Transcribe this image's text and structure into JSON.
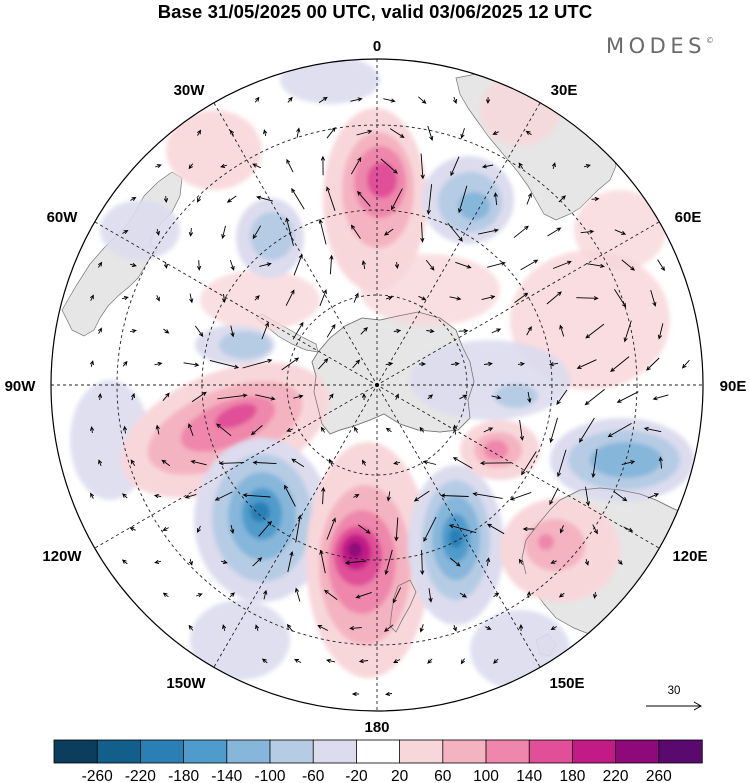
{
  "title": "Base 31/05/2025 00 UTC, valid 03/06/2025 12 UTC",
  "brand": {
    "name": "MODES",
    "mark": "©"
  },
  "longitude_labels": [
    "0",
    "30E",
    "60E",
    "90E",
    "120E",
    "150E",
    "180",
    "150W",
    "120W",
    "90W",
    "60W",
    "30W"
  ],
  "reference_vector": {
    "value": "30"
  },
  "colorbar": {
    "ticks": [
      "-260",
      "-220",
      "-180",
      "-140",
      "-100",
      "-60",
      "-20",
      "20",
      "60",
      "100",
      "140",
      "180",
      "220",
      "260"
    ],
    "colors": [
      "#0b3d5c",
      "#135f8c",
      "#2a7fb5",
      "#4f9bcb",
      "#86b6da",
      "#b6cce4",
      "#dcdcee",
      "#ffffff",
      "#f8d7da",
      "#f4b3c0",
      "#ee87ab",
      "#e04f98",
      "#c21a86",
      "#8e0a7a",
      "#5a0a6e"
    ]
  },
  "anomaly_regions": [
    {
      "sign": "positive",
      "peak_level": "220-260",
      "area": "near 165E-170W, 40-50S"
    },
    {
      "sign": "positive",
      "peak_level": "140-180",
      "area": "near 0-10E, 45S"
    },
    {
      "sign": "positive",
      "peak_level": "140-180",
      "area": "near 80W-100W, 50S"
    },
    {
      "sign": "negative",
      "peak_level": "-180 to -220",
      "area": "near 125W, 45S"
    },
    {
      "sign": "negative",
      "peak_level": "-180 to -220",
      "area": "near 150E-160E, 45S"
    },
    {
      "sign": "negative",
      "peak_level": "-100 to -140",
      "area": "near 105E, 45S"
    },
    {
      "sign": "negative",
      "peak_level": "-100 to -140",
      "area": "near 30E, 45S"
    },
    {
      "sign": "negative",
      "peak_level": "-60 to -100",
      "area": "near 45W, 50S"
    }
  ],
  "colors": {
    "land": "#e6e6e6",
    "coast": "#777777",
    "graticule": "#222222"
  }
}
